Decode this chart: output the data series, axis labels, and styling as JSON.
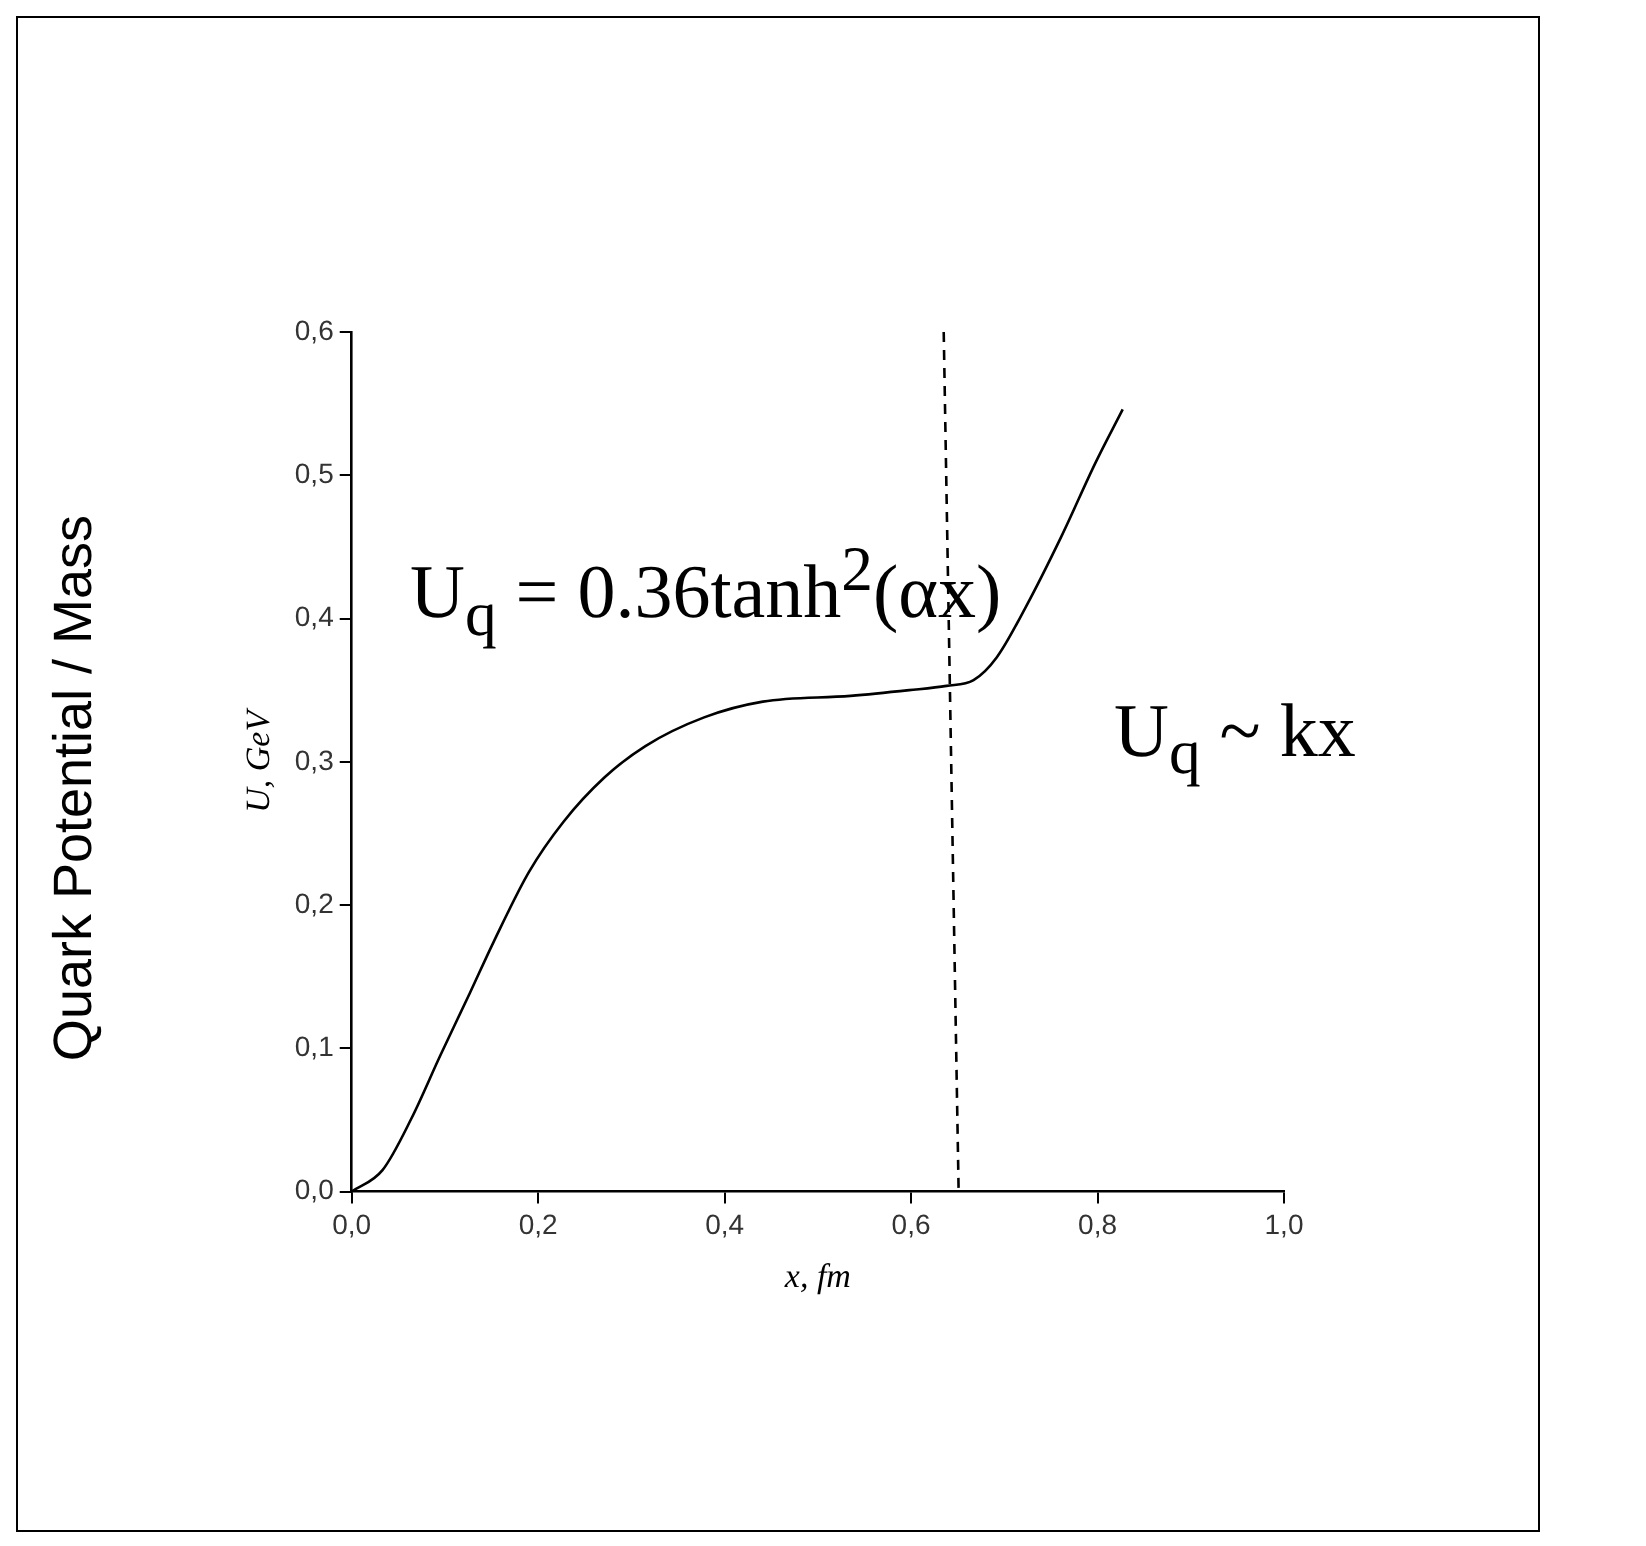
{
  "chart_data": {
    "type": "line",
    "title": "Quark Potential / Mass",
    "xlabel": "x, fm",
    "ylabel": "U, GeV",
    "xlim": [
      0,
      1
    ],
    "ylim": [
      0,
      0.6
    ],
    "xticks": [
      {
        "value": 0,
        "label": "0,0"
      },
      {
        "value": 0.2,
        "label": "0,2"
      },
      {
        "value": 0.4,
        "label": "0,4"
      },
      {
        "value": 0.6,
        "label": "0,6"
      },
      {
        "value": 0.8,
        "label": "0,8"
      },
      {
        "value": 1,
        "label": "1,0"
      }
    ],
    "yticks": [
      {
        "value": 0,
        "label": "0,0"
      },
      {
        "value": 0.1,
        "label": "0,1"
      },
      {
        "value": 0.2,
        "label": "0,2"
      },
      {
        "value": 0.3,
        "label": "0,3"
      },
      {
        "value": 0.4,
        "label": "0,4"
      },
      {
        "value": 0.5,
        "label": "0,5"
      },
      {
        "value": 0.6,
        "label": "0,6"
      }
    ],
    "grid": false,
    "marker": "none",
    "series": [
      {
        "color": "#000000",
        "line_style": "solid",
        "x": [
          0,
          0.033,
          0.064,
          0.095,
          0.127,
          0.152,
          0.19,
          0.227,
          0.271,
          0.315,
          0.378,
          0.441,
          0.535,
          0.598,
          0.638,
          0.667,
          0.692,
          0.723,
          0.761,
          0.798,
          0.827
        ],
        "values": [
          0,
          0.015,
          0.051,
          0.095,
          0.139,
          0.174,
          0.223,
          0.258,
          0.289,
          0.311,
          0.331,
          0.342,
          0.346,
          0.35,
          0.353,
          0.357,
          0.373,
          0.408,
          0.457,
          0.509,
          0.546
        ]
      },
      {
        "color": "#000000",
        "line_style": "dashed",
        "x": [
          0.635,
          0.651
        ],
        "values": [
          0.6,
          0
        ]
      }
    ],
    "annotations": [
      "U$_{q}$ = 0.36tanh$^{2}$(αx)",
      "U$_{q}$ ~ kx"
    ]
  }
}
